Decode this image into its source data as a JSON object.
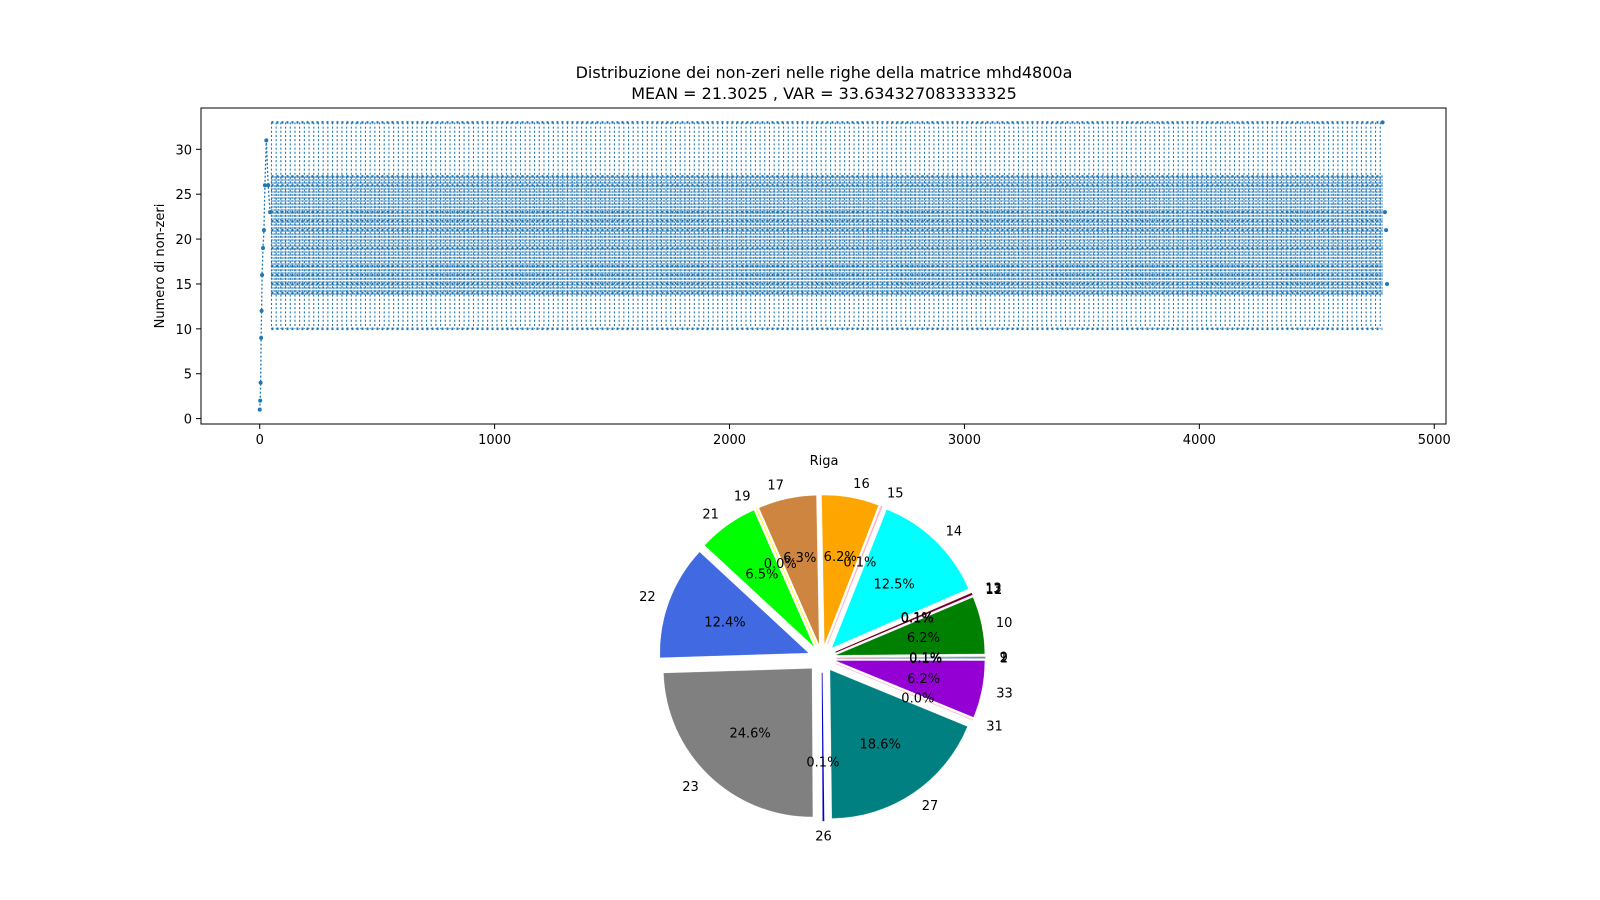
{
  "chart_data": [
    {
      "type": "scatter",
      "title": "Distribuzione dei non-zeri nelle righe della matrice mhd4800a",
      "subtitle": "MEAN = 21.3025 , VAR = 33.634327083333325",
      "xlabel": "Riga",
      "ylabel": "Numero di non-zeri",
      "xlim": [
        -250,
        5050
      ],
      "ylim": [
        -0.6,
        34.6
      ],
      "xticks": [
        0,
        1000,
        2000,
        3000,
        4000,
        5000
      ],
      "yticks": [
        0,
        5,
        10,
        15,
        20,
        25,
        30
      ],
      "color": "#1f77b4",
      "marker": "dotted line with point markers",
      "x_range": [
        0,
        4799
      ],
      "startup": [
        {
          "x": 0,
          "y": 1
        },
        {
          "x": 2,
          "y": 2
        },
        {
          "x": 4,
          "y": 4
        },
        {
          "x": 6,
          "y": 9
        },
        {
          "x": 8,
          "y": 12
        },
        {
          "x": 10,
          "y": 16
        },
        {
          "x": 14,
          "y": 19
        },
        {
          "x": 18,
          "y": 21
        },
        {
          "x": 22,
          "y": 26
        },
        {
          "x": 28,
          "y": 31
        },
        {
          "x": 36,
          "y": 26
        },
        {
          "x": 44,
          "y": 23
        }
      ],
      "periodic_levels": [
        10,
        14,
        15,
        16,
        17,
        19,
        21,
        22,
        23,
        26,
        27,
        33
      ],
      "end_values": [
        {
          "x": 4780,
          "y": 33
        },
        {
          "x": 4790,
          "y": 23
        },
        {
          "x": 4795,
          "y": 21
        },
        {
          "x": 4799,
          "y": 15
        }
      ]
    },
    {
      "type": "pie",
      "slices": [
        {
          "label": "1",
          "value": 0.05,
          "pct": "0.1%",
          "color": "#1f77b4"
        },
        {
          "label": "2",
          "value": 0.05,
          "pct": "0.1%",
          "color": "#ff0000"
        },
        {
          "label": "9",
          "value": 0.05,
          "pct": "0.1%",
          "color": "#d3d3d3"
        },
        {
          "label": "10",
          "value": 6.2,
          "pct": "6.2%",
          "color": "#008000"
        },
        {
          "label": "11",
          "value": 0.05,
          "pct": "0.1%",
          "color": "#ff1493"
        },
        {
          "label": "12",
          "value": 0.05,
          "pct": "0.1%",
          "color": "#000080"
        },
        {
          "label": "13",
          "value": 0.05,
          "pct": "0.1%",
          "color": "#8b0000"
        },
        {
          "label": "14",
          "value": 12.5,
          "pct": "12.5%",
          "color": "#00ffff"
        },
        {
          "label": "15",
          "value": 0.1,
          "pct": "0.1%",
          "color": "#ffb6c1"
        },
        {
          "label": "16",
          "value": 6.2,
          "pct": "6.2%",
          "color": "#ffa500"
        },
        {
          "label": "17",
          "value": 6.3,
          "pct": "6.3%",
          "color": "#cd853f"
        },
        {
          "label": "19",
          "value": 0.02,
          "pct": "0.0%",
          "color": "#ffff00"
        },
        {
          "label": "21",
          "value": 6.5,
          "pct": "6.5%",
          "color": "#00ff00"
        },
        {
          "label": "22",
          "value": 12.4,
          "pct": "12.4%",
          "color": "#4169e1"
        },
        {
          "label": "23",
          "value": 24.6,
          "pct": "24.6%",
          "color": "#808080"
        },
        {
          "label": "26",
          "value": 0.1,
          "pct": "0.1%",
          "color": "#0000cd"
        },
        {
          "label": "27",
          "value": 18.6,
          "pct": "18.6%",
          "color": "#008080"
        },
        {
          "label": "31",
          "value": 0.02,
          "pct": "0.0%",
          "color": "#ffc0cb"
        },
        {
          "label": "33",
          "value": 6.2,
          "pct": "6.2%",
          "color": "#9400d3"
        }
      ]
    }
  ]
}
